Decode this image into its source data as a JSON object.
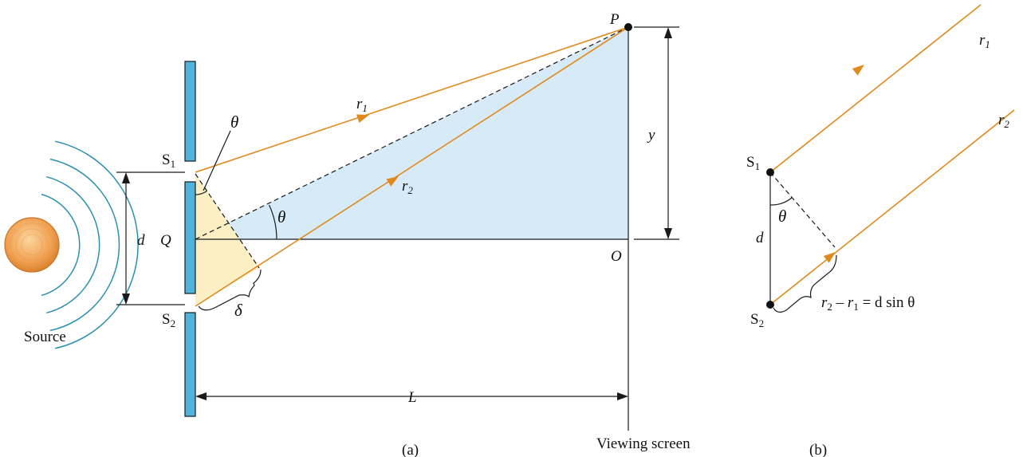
{
  "figure_a": {
    "caption": "(a)",
    "source_label": "Source",
    "slit1_label": "S",
    "slit1_sub": "1",
    "slit2_label": "S",
    "slit2_sub": "2",
    "point_P_label": "P",
    "point_Q_label": "Q",
    "point_O_label": "O",
    "d_label": "d",
    "y_label": "y",
    "L_label": "L",
    "theta_label": "θ",
    "delta_label": "δ",
    "ray1_label": "r",
    "ray1_sub": "1",
    "ray2_label": "r",
    "ray2_sub": "2",
    "screen_label": "Viewing screen",
    "colors": {
      "ray": "#e08a1e",
      "slit_barrier": "#4fb4dc",
      "triangle_blue": "#d6ebf7",
      "triangle_yellow": "#fcefc4",
      "source_sphere": "#f0a050",
      "wavefront": "#2a8fb0"
    }
  },
  "figure_b": {
    "caption": "(b)",
    "slit1_label": "S",
    "slit1_sub": "1",
    "slit2_label": "S",
    "slit2_sub": "2",
    "d_label": "d",
    "theta_label": "θ",
    "ray1_label": "r",
    "ray1_sub": "1",
    "ray2_label": "r",
    "ray2_sub": "2",
    "equation_r2": "r",
    "equation_r2_sub": "2",
    "equation_minus": " – ",
    "equation_r1": "r",
    "equation_r1_sub": "1",
    "equation_rest": " = d sin θ"
  }
}
